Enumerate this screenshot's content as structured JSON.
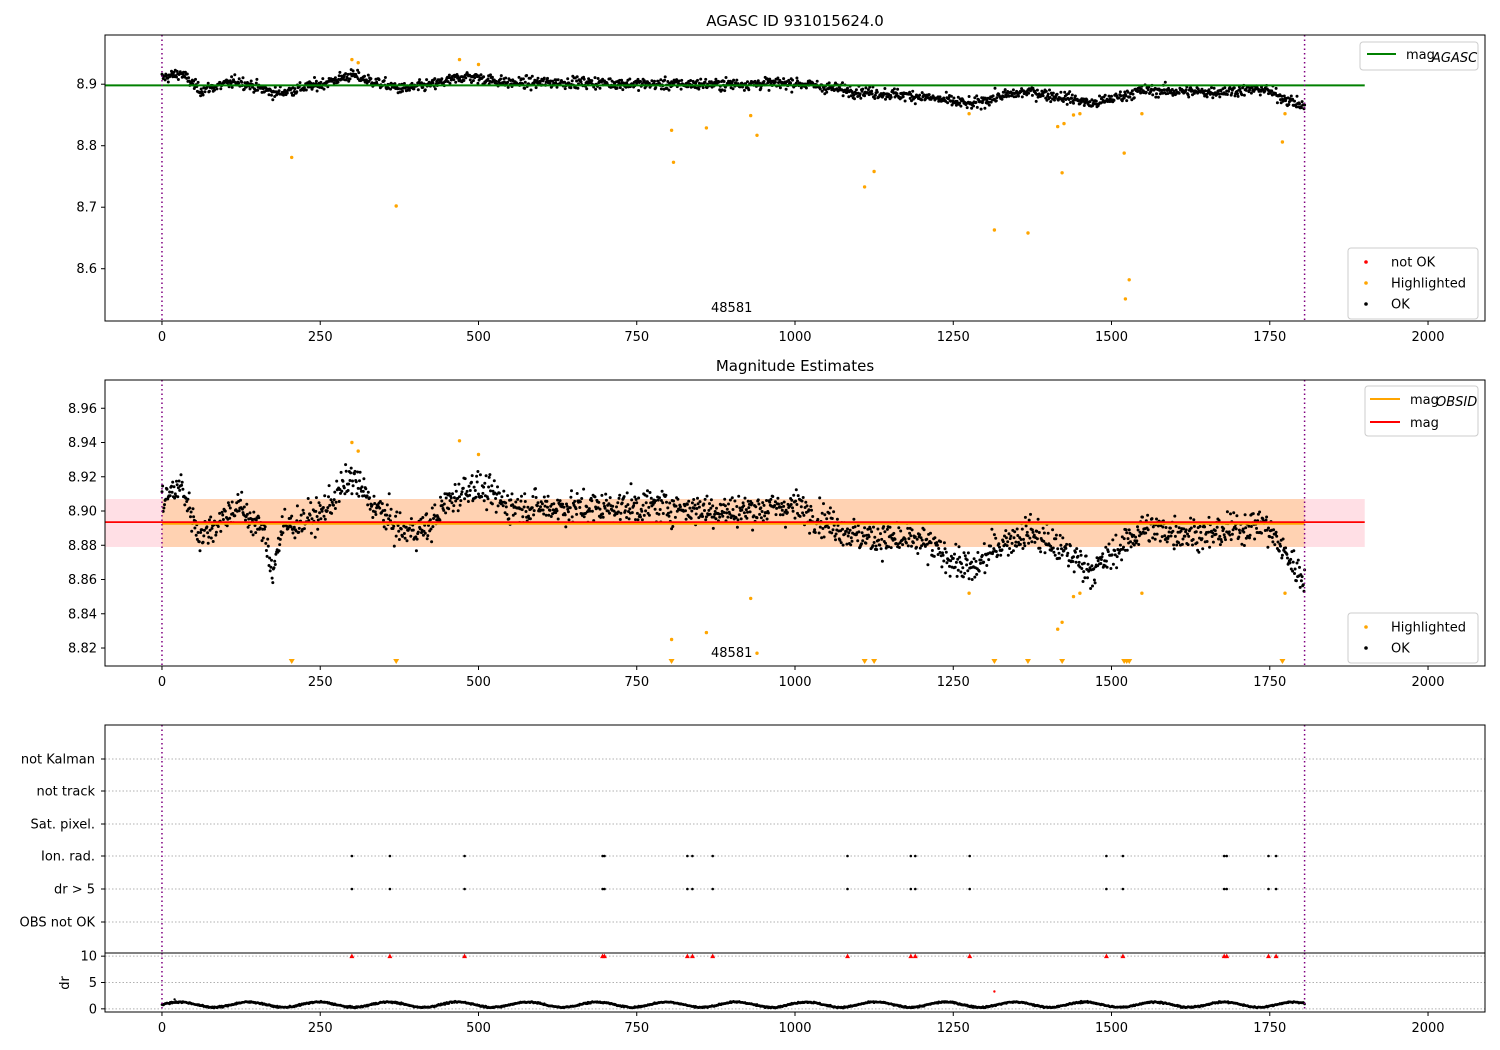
{
  "chart_data": [
    {
      "type": "scatter",
      "title": "AGASC ID 931015624.0",
      "xlabel": "",
      "ylabel": "",
      "xlim": [
        -90,
        2090
      ],
      "ylim": [
        8.515,
        8.98
      ],
      "xticks": [
        0,
        250,
        500,
        750,
        1000,
        1250,
        1500,
        1750,
        2000
      ],
      "yticks": [
        8.6,
        8.7,
        8.8,
        8.9
      ],
      "ytick_labels": [
        "8.6",
        "8.7",
        "8.8",
        "8.9"
      ],
      "annotation": "48581",
      "vlines": [
        0,
        1805
      ],
      "hline": {
        "label": "mag_AGASC",
        "value": 8.898,
        "color": "#008000",
        "x_range": [
          -90,
          1900
        ]
      },
      "legend_upper": "top-right",
      "legend_lower": "bottom-right",
      "legend_lower_entries": [
        {
          "label": "not OK",
          "color": "#ff0000"
        },
        {
          "label": "Highlighted",
          "color": "#ffa500"
        },
        {
          "label": "OK",
          "color": "#000000"
        }
      ],
      "series": [
        {
          "name": "OK",
          "color": "#000000",
          "trend": [
            [
              0,
              8.91
            ],
            [
              30,
              8.918
            ],
            [
              60,
              8.89
            ],
            [
              120,
              8.905
            ],
            [
              180,
              8.885
            ],
            [
              250,
              8.9
            ],
            [
              300,
              8.915
            ],
            [
              330,
              8.905
            ],
            [
              380,
              8.892
            ],
            [
              430,
              8.9
            ],
            [
              480,
              8.913
            ],
            [
              550,
              8.902
            ],
            [
              650,
              8.903
            ],
            [
              780,
              8.9
            ],
            [
              900,
              8.9
            ],
            [
              1000,
              8.902
            ],
            [
              1100,
              8.888
            ],
            [
              1200,
              8.88
            ],
            [
              1280,
              8.867
            ],
            [
              1320,
              8.88
            ],
            [
              1370,
              8.888
            ],
            [
              1440,
              8.876
            ],
            [
              1470,
              8.868
            ],
            [
              1550,
              8.89
            ],
            [
              1650,
              8.887
            ],
            [
              1740,
              8.892
            ],
            [
              1800,
              8.865
            ]
          ],
          "noise": 0.008
        },
        {
          "name": "Highlighted",
          "color": "#ffa500",
          "points": [
            [
              205,
              8.781
            ],
            [
              300,
              8.94
            ],
            [
              310,
              8.935
            ],
            [
              370,
              8.702
            ],
            [
              470,
              8.94
            ],
            [
              500,
              8.932
            ],
            [
              805,
              8.825
            ],
            [
              808,
              8.773
            ],
            [
              860,
              8.829
            ],
            [
              930,
              8.849
            ],
            [
              940,
              8.817
            ],
            [
              1110,
              8.733
            ],
            [
              1125,
              8.758
            ],
            [
              1275,
              8.852
            ],
            [
              1315,
              8.663
            ],
            [
              1368,
              8.658
            ],
            [
              1415,
              8.831
            ],
            [
              1422,
              8.756
            ],
            [
              1425,
              8.836
            ],
            [
              1440,
              8.85
            ],
            [
              1450,
              8.852
            ],
            [
              1520,
              8.788
            ],
            [
              1522,
              8.551
            ],
            [
              1528,
              8.582
            ],
            [
              1548,
              8.852
            ],
            [
              1770,
              8.806
            ],
            [
              1774,
              8.852
            ]
          ]
        }
      ]
    },
    {
      "type": "scatter",
      "title": "Magnitude Estimates",
      "xlabel": "",
      "ylabel": "",
      "xlim": [
        -90,
        2090
      ],
      "ylim": [
        8.8095,
        8.9765
      ],
      "xticks": [
        0,
        250,
        500,
        750,
        1000,
        1250,
        1500,
        1750,
        2000
      ],
      "yticks": [
        8.82,
        8.84,
        8.86,
        8.88,
        8.9,
        8.92,
        8.94,
        8.96
      ],
      "ytick_labels": [
        "8.82",
        "8.84",
        "8.86",
        "8.88",
        "8.90",
        "8.92",
        "8.94",
        "8.96"
      ],
      "annotation": "48581",
      "vlines": [
        0,
        1805
      ],
      "band": {
        "lo": 8.879,
        "hi": 8.907,
        "x_range": [
          -90,
          1900
        ],
        "obs_x_range": [
          0,
          1805
        ]
      },
      "hlines": [
        {
          "label": "mag_OBSID",
          "value": 8.8925,
          "color": "#ffa500",
          "x_range": [
            0,
            1805
          ]
        },
        {
          "label": "mag",
          "value": 8.8935,
          "color": "#ff0000",
          "x_range": [
            -90,
            1900
          ]
        }
      ],
      "legend_upper": "top-right",
      "legend_lower": "bottom-right",
      "legend_lower_entries": [
        {
          "label": "Highlighted",
          "color": "#ffa500"
        },
        {
          "label": "OK",
          "color": "#000000"
        }
      ],
      "offscale_markers_x": [
        205,
        370,
        805,
        1110,
        1125,
        1315,
        1368,
        1422,
        1520,
        1524,
        1528,
        1770
      ],
      "series": [
        {
          "name": "OK",
          "color": "#000000",
          "trend": [
            [
              0,
              8.906
            ],
            [
              30,
              8.915
            ],
            [
              60,
              8.885
            ],
            [
              120,
              8.903
            ],
            [
              160,
              8.888
            ],
            [
              175,
              8.865
            ],
            [
              190,
              8.89
            ],
            [
              250,
              8.898
            ],
            [
              300,
              8.92
            ],
            [
              330,
              8.905
            ],
            [
              380,
              8.888
            ],
            [
              420,
              8.89
            ],
            [
              450,
              8.905
            ],
            [
              490,
              8.915
            ],
            [
              550,
              8.903
            ],
            [
              650,
              8.902
            ],
            [
              780,
              8.903
            ],
            [
              900,
              8.9
            ],
            [
              1000,
              8.903
            ],
            [
              1100,
              8.885
            ],
            [
              1200,
              8.882
            ],
            [
              1280,
              8.865
            ],
            [
              1320,
              8.88
            ],
            [
              1370,
              8.888
            ],
            [
              1440,
              8.873
            ],
            [
              1470,
              8.865
            ],
            [
              1550,
              8.89
            ],
            [
              1650,
              8.886
            ],
            [
              1740,
              8.893
            ],
            [
              1800,
              8.862
            ]
          ],
          "noise": 0.008
        },
        {
          "name": "Highlighted",
          "color": "#ffa500",
          "points": [
            [
              300,
              8.94
            ],
            [
              310,
              8.935
            ],
            [
              470,
              8.941
            ],
            [
              500,
              8.933
            ],
            [
              805,
              8.825
            ],
            [
              860,
              8.829
            ],
            [
              930,
              8.849
            ],
            [
              940,
              8.817
            ],
            [
              1275,
              8.852
            ],
            [
              1415,
              8.831
            ],
            [
              1422,
              8.835
            ],
            [
              1440,
              8.85
            ],
            [
              1450,
              8.852
            ],
            [
              1548,
              8.852
            ],
            [
              1774,
              8.852
            ]
          ]
        }
      ]
    },
    {
      "type": "scatter",
      "title": "",
      "xlabel": "",
      "ylabel": "",
      "xlim": [
        -90,
        2090
      ],
      "categories": [
        "not Kalman",
        "not track",
        "Sat. pixel.",
        "Ion. rad.",
        "dr > 5",
        "OBS not OK"
      ],
      "vlines": [
        0,
        1805
      ],
      "flag_x": {
        "Ion. rad.": [
          300,
          360,
          478,
          696,
          699,
          830,
          838,
          870,
          1083,
          1183,
          1190,
          1276,
          1492,
          1518,
          1678,
          1682,
          1748,
          1760
        ],
        "dr > 5": [
          300,
          360,
          478,
          696,
          699,
          830,
          838,
          870,
          1083,
          1183,
          1190,
          1276,
          1492,
          1518,
          1678,
          1682,
          1748,
          1760
        ]
      }
    },
    {
      "type": "scatter",
      "title": "",
      "xlabel": "",
      "ylabel": "dr",
      "xlim": [
        -90,
        2090
      ],
      "ylim": [
        -0.6,
        10.6
      ],
      "xticks": [
        0,
        250,
        500,
        750,
        1000,
        1250,
        1500,
        1750,
        2000
      ],
      "yticks": [
        0,
        5,
        10
      ],
      "ytick_labels": [
        "0",
        "5",
        "10"
      ],
      "vlines": [
        0,
        1805
      ],
      "capped_markers_x": [
        300,
        360,
        478,
        696,
        699,
        830,
        838,
        870,
        1083,
        1183,
        1190,
        1276,
        1492,
        1518,
        1678,
        1682,
        1748,
        1760
      ],
      "capped_value": 10,
      "outliers": [
        [
          1315,
          3.3
        ],
        [
          20,
          1.8
        ]
      ],
      "series": [
        {
          "name": "dr",
          "color": "#000000",
          "period": 110,
          "base": 0.8,
          "amp": 0.5
        }
      ]
    }
  ]
}
